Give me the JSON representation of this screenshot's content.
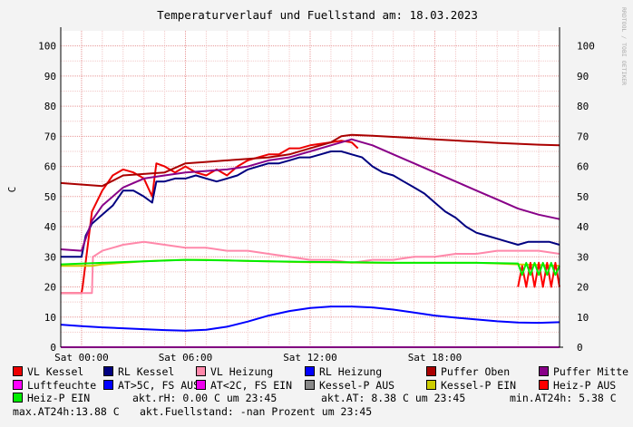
{
  "chart_data": {
    "type": "line",
    "title": "Temperaturverlauf und Fuellstand am: 18.03.2023",
    "ylabel": "C",
    "watermark": "RRDTOOL / TOBI OETIKER",
    "ylim": [
      0,
      105
    ],
    "xlim": [
      0,
      24
    ],
    "y_ticks": [
      0,
      10,
      20,
      30,
      40,
      50,
      60,
      70,
      80,
      90,
      100
    ],
    "x_tick_hours": [
      1,
      6,
      12,
      18
    ],
    "x_ticks": [
      "Sat 00:00",
      "Sat 06:00",
      "Sat 12:00",
      "Sat 18:00"
    ],
    "grid": true,
    "series": [
      {
        "name": "VL Kessel",
        "color": "#ee0000",
        "x": [
          0,
          1.0,
          1.05,
          1.5,
          2.0,
          2.5,
          3.0,
          3.5,
          4.0,
          4.4,
          4.6,
          5.0,
          5.5,
          6.0,
          6.5,
          7.0,
          7.5,
          8.0,
          8.5,
          9.0,
          9.5,
          10.0,
          10.5,
          11.0,
          11.5,
          12.0,
          12.5,
          13.0,
          13.5,
          14.0,
          14.3
        ],
        "y": [
          18,
          18,
          20,
          45,
          52,
          57,
          59,
          58,
          56,
          50,
          61,
          60,
          58,
          60,
          58,
          57,
          59,
          57,
          60,
          62,
          63,
          64,
          64,
          66,
          66,
          67,
          67.5,
          68,
          68.5,
          68,
          66
        ]
      },
      {
        "name": "RL Kessel",
        "color": "#000080",
        "x": [
          0,
          1.0,
          1.2,
          1.5,
          2.0,
          2.5,
          3.0,
          3.5,
          4.0,
          4.4,
          4.6,
          5.0,
          5.5,
          6.0,
          6.5,
          7.0,
          7.5,
          8.0,
          8.5,
          9.0,
          9.5,
          10.0,
          10.5,
          11.0,
          11.5,
          12.0,
          12.5,
          13.0,
          13.5,
          14.0,
          14.5,
          15.0,
          15.5,
          16.0,
          16.5,
          17.0,
          17.5,
          18.0,
          18.5,
          19.0,
          19.5,
          20.0,
          20.5,
          21.0,
          21.5,
          22.0,
          22.5,
          23.0,
          23.5,
          24.0
        ],
        "y": [
          30,
          30,
          37,
          41,
          44,
          47,
          52,
          52,
          50,
          48,
          55,
          55,
          56,
          56,
          57,
          56,
          55,
          56,
          57,
          59,
          60,
          61,
          61,
          62,
          63,
          63,
          64,
          65,
          65,
          64,
          63,
          60,
          58,
          57,
          55,
          53,
          51,
          48,
          45,
          43,
          40,
          38,
          37,
          36,
          35,
          34,
          35,
          35,
          35,
          34
        ]
      },
      {
        "name": "VL Heizung",
        "color": "#ff88aa",
        "x": [
          0,
          1.5,
          1.55,
          2.0,
          2.5,
          3.0,
          4.0,
          5.0,
          6.0,
          7.0,
          8.0,
          9.0,
          10.0,
          11.0,
          12.0,
          13.0,
          14.0,
          15.0,
          16.0,
          17.0,
          18.0,
          19.0,
          20.0,
          21.0,
          22.0,
          23.0,
          24.0
        ],
        "y": [
          18,
          18,
          30,
          32,
          33,
          34,
          35,
          34,
          33,
          33,
          32,
          32,
          31,
          30,
          29,
          29,
          28,
          29,
          29,
          30,
          30,
          31,
          31,
          32,
          32,
          32,
          31
        ]
      },
      {
        "name": "RL Heizung",
        "color": "#0000ff",
        "x": [
          0,
          1,
          2,
          3,
          4,
          5,
          6,
          7,
          8,
          9,
          10,
          11,
          12,
          13,
          14,
          15,
          16,
          17,
          18,
          19,
          20,
          21,
          22,
          23,
          24
        ],
        "y": [
          7.5,
          7,
          6.6,
          6.3,
          6.0,
          5.7,
          5.5,
          5.8,
          6.8,
          8.5,
          10.5,
          12,
          13,
          13.5,
          13.5,
          13.2,
          12.5,
          11.5,
          10.5,
          9.8,
          9.2,
          8.6,
          8.2,
          8.1,
          8.3
        ]
      },
      {
        "name": "Puffer Oben",
        "color": "#aa0000",
        "x": [
          0,
          2,
          3,
          4,
          5,
          6,
          7,
          8,
          9,
          10,
          11,
          12,
          13,
          13.5,
          14,
          15,
          16,
          17,
          18,
          19,
          20,
          21,
          22,
          23,
          24
        ],
        "y": [
          54.5,
          53.5,
          57,
          57.5,
          58,
          61,
          61.5,
          62,
          62.5,
          63,
          64,
          66,
          68,
          70,
          70.5,
          70.2,
          69.8,
          69.4,
          69,
          68.6,
          68.2,
          67.8,
          67.5,
          67.2,
          67
        ]
      },
      {
        "name": "Puffer Mitte",
        "color": "#880088",
        "x": [
          0,
          1.0,
          1.5,
          2.0,
          3.0,
          4.0,
          5.0,
          6.0,
          7.0,
          8.0,
          9.0,
          10.0,
          11.0,
          12.0,
          13.0,
          14.0,
          15.0,
          16.0,
          17.0,
          18.0,
          19.0,
          20.0,
          21.0,
          22.0,
          23.0,
          24.0
        ],
        "y": [
          32.5,
          32,
          42,
          47,
          53,
          56,
          57,
          58,
          58.5,
          59,
          60,
          62,
          63,
          65,
          67,
          69,
          67,
          64,
          61,
          58,
          55,
          52,
          49,
          46,
          44,
          42.5
        ]
      },
      {
        "name": "Luftfeuchte",
        "color": "#ff00ff",
        "x": [
          0,
          24
        ],
        "y": [
          0,
          0
        ]
      },
      {
        "name": "AT>5C, FS AUS",
        "color": "#0000ff",
        "x": [],
        "y": []
      },
      {
        "name": "AT<2C, FS EIN",
        "color": "#ee00ee",
        "x": [],
        "y": []
      },
      {
        "name": "Kessel-P AUS",
        "color": "#888888",
        "x": [],
        "y": []
      },
      {
        "name": "Kessel-P EIN",
        "color": "#cccc00",
        "x": [
          0,
          1.5,
          2,
          3,
          4,
          5,
          6,
          7,
          8,
          9,
          10,
          11,
          12,
          13,
          14,
          15,
          16,
          17,
          18,
          19,
          20,
          21,
          22,
          23,
          24
        ],
        "y": [
          27,
          27,
          27.5,
          28,
          28.5,
          28.8,
          29,
          29,
          28.8,
          28.6,
          28.5,
          28.3,
          28.2,
          28.2,
          28.1,
          28,
          28,
          28,
          28,
          28,
          28,
          27.8,
          27.5,
          27.3,
          27
        ]
      },
      {
        "name": "Heiz-P AUS",
        "color": "#ff0000",
        "x": [
          22.0,
          22.2,
          22.4,
          22.6,
          22.8,
          23.0,
          23.2,
          23.4,
          23.6,
          23.8,
          24.0
        ],
        "y": [
          20,
          27,
          20,
          28,
          20,
          28,
          20,
          28,
          20,
          28,
          20
        ]
      },
      {
        "name": "Heiz-P EIN",
        "color": "#00ee00",
        "x": [
          0,
          2,
          4,
          6,
          8,
          10,
          12,
          14,
          16,
          18,
          20,
          22,
          22.2,
          22.4,
          22.6,
          22.8,
          23.0,
          23.2,
          23.4,
          23.6,
          23.8,
          24.0
        ],
        "y": [
          27.5,
          28,
          28.5,
          29,
          28.8,
          28.5,
          28.3,
          28.2,
          28,
          28,
          28,
          27.8,
          24,
          28,
          24,
          28,
          24,
          28,
          24,
          28,
          24,
          27
        ]
      }
    ]
  },
  "status": {
    "akt_rh": "akt.rH: 0.00 C um 23:45",
    "akt_at": "akt.AT: 8.38 C um 23:45",
    "min_at": "min.AT24h: 5.38 C",
    "max_at": "max.AT24h:13.88 C",
    "fuellstand": "akt.Fuellstand: -nan Prozent um 23:45"
  }
}
